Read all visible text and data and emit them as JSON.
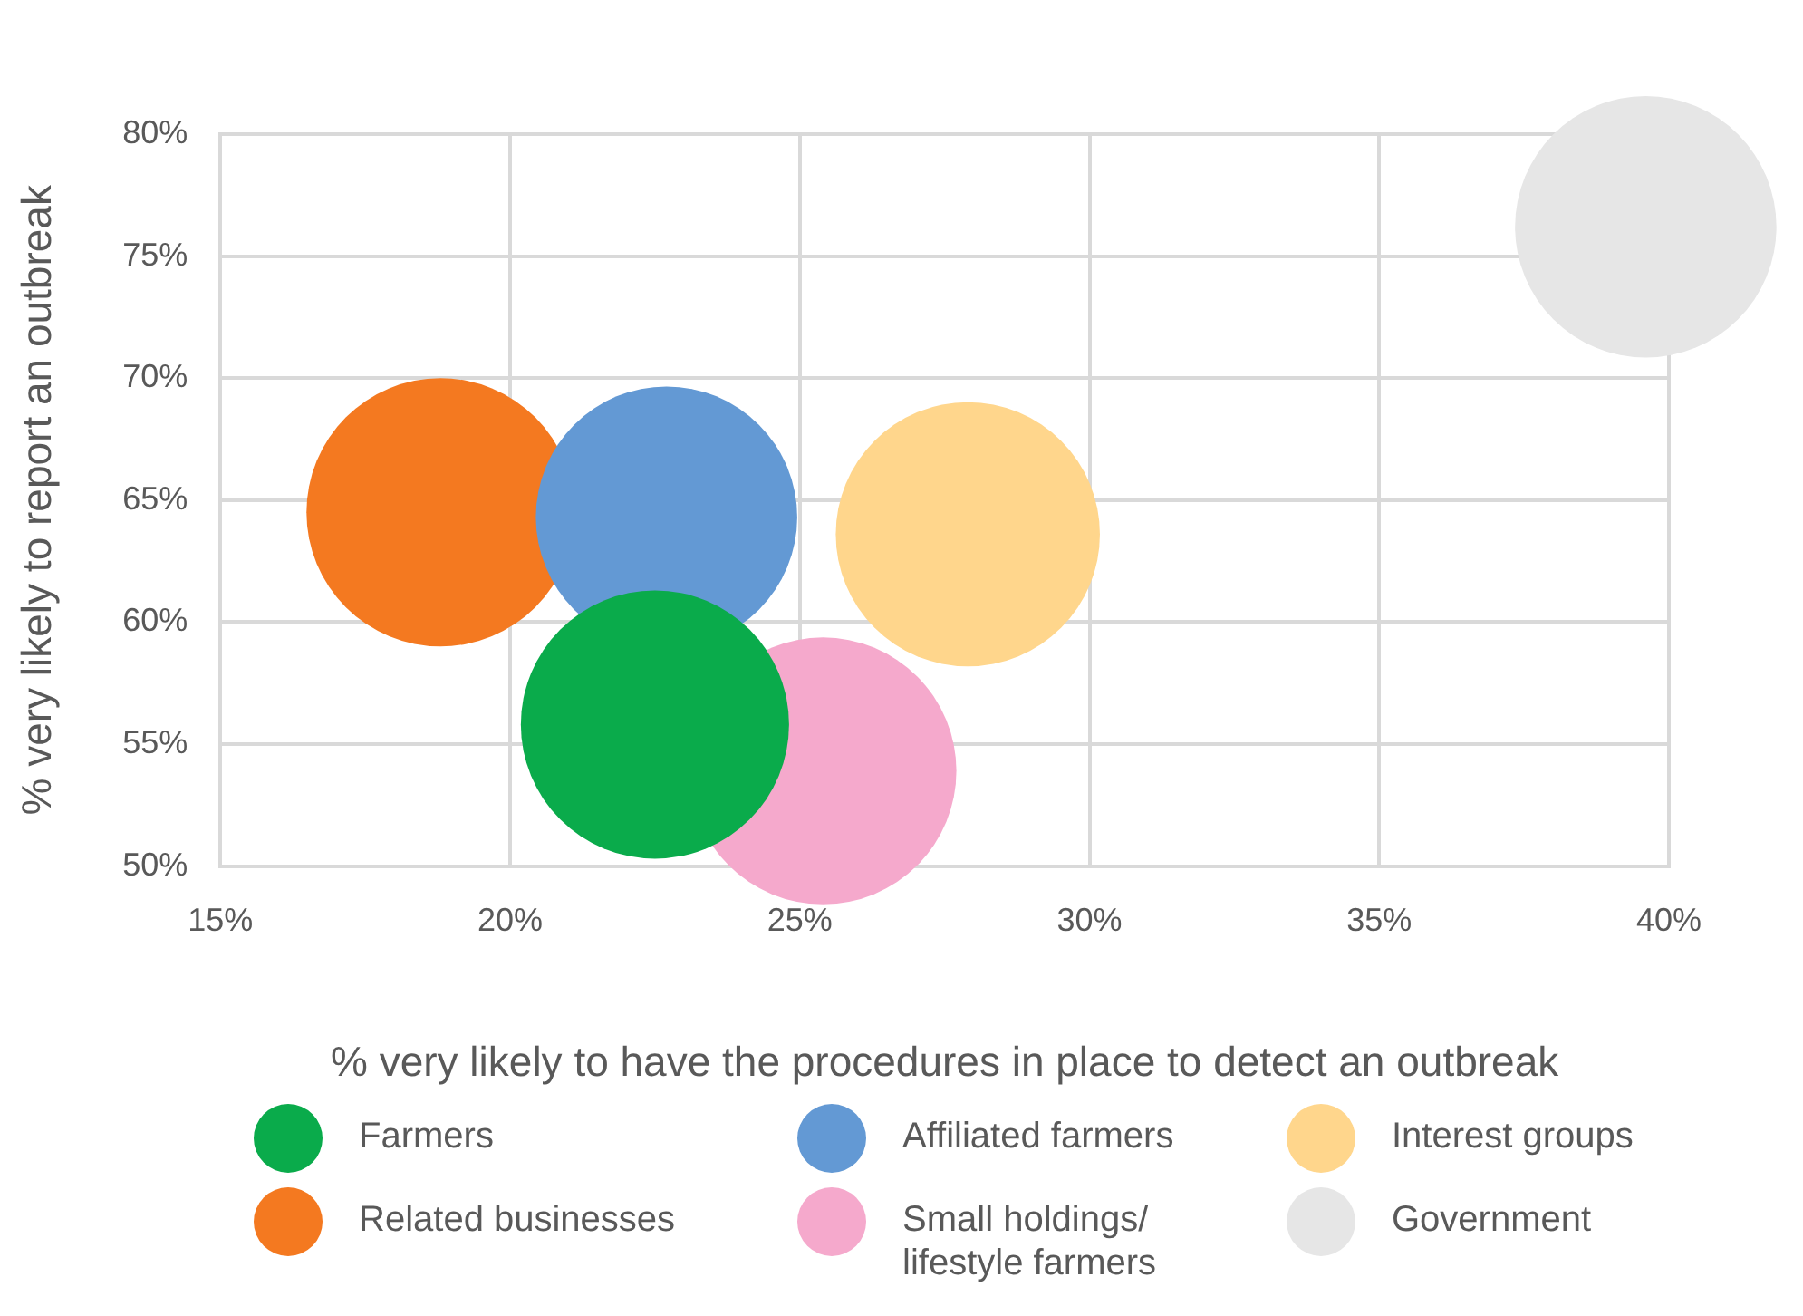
{
  "chart_data": {
    "type": "bubble",
    "xlabel": "% very likely to have the procedures in place to detect an outbreak",
    "ylabel": "% very likely to report an outbreak",
    "xlim": [
      15,
      40
    ],
    "xticks": [
      {
        "value": 15,
        "label": "15%"
      },
      {
        "value": 20,
        "label": "20%"
      },
      {
        "value": 25,
        "label": "25%"
      },
      {
        "value": 30,
        "label": "30%"
      },
      {
        "value": 35,
        "label": "35%"
      },
      {
        "value": 40,
        "label": "40%"
      }
    ],
    "ylim": [
      50,
      80
    ],
    "yticks": [
      {
        "value": 50,
        "label": "50%"
      },
      {
        "value": 55,
        "label": "55%"
      },
      {
        "value": 60,
        "label": "60%"
      },
      {
        "value": 65,
        "label": "65%"
      },
      {
        "value": 70,
        "label": "70%"
      },
      {
        "value": 75,
        "label": "75%"
      },
      {
        "value": 80,
        "label": "80%"
      }
    ],
    "grid": true,
    "legend": "bottom",
    "marker": "circle",
    "series": [
      {
        "name": "Farmers",
        "color": "#0aab4b",
        "x": [
          22.5
        ],
        "values": [
          55.8
        ],
        "sizes": [
          1
        ]
      },
      {
        "name": "Affiliated farmers",
        "color": "#6399d4",
        "x": [
          22.7
        ],
        "values": [
          64.3
        ],
        "sizes": [
          0.95
        ]
      },
      {
        "name": "Interest groups",
        "color": "#ffd68c",
        "x": [
          27.9
        ],
        "values": [
          63.6
        ],
        "sizes": [
          0.97
        ]
      },
      {
        "name": "Related businesses",
        "color": "#f47920",
        "x": [
          18.8
        ],
        "values": [
          64.5
        ],
        "sizes": [
          1
        ]
      },
      {
        "name": "Small holdings/ lifestyle farmers",
        "color": "#f5a9cc",
        "x": [
          25.4
        ],
        "values": [
          53.9
        ],
        "sizes": [
          0.99
        ]
      },
      {
        "name": "Government",
        "color": "#e6e6e6",
        "x": [
          39.6
        ],
        "values": [
          76.2
        ],
        "sizes": [
          0.95
        ]
      }
    ]
  }
}
